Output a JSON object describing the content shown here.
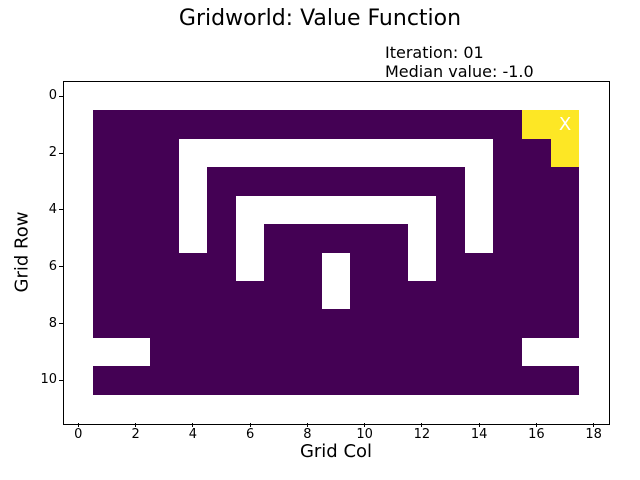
{
  "figure": {
    "title": "Gridworld: Value Function",
    "annotation_line1": "Iteration: 01",
    "annotation_line2": "Median value: -1.0",
    "xlabel": "Grid Col",
    "ylabel": "Grid Row"
  },
  "chart_data": {
    "type": "heatmap",
    "title": "Gridworld: Value Function",
    "xlabel": "Grid Col",
    "ylabel": "Grid Row",
    "iteration": "01",
    "median_value": "-1.0",
    "n_rows": 12,
    "n_cols": 19,
    "xlim": [
      -0.5,
      18.5
    ],
    "ylim": [
      11.5,
      -0.5
    ],
    "x_ticks": [
      0,
      2,
      4,
      6,
      8,
      10,
      12,
      14,
      16,
      18
    ],
    "y_ticks": [
      0,
      2,
      4,
      6,
      8,
      10
    ],
    "grid_on": false,
    "legend": "none",
    "colorbar": "none",
    "cell_values": {
      "V": -1.0,
      "G": 0.0,
      ".": null
    },
    "colors": {
      "V": "#440154",
      "G": "#fde725",
      ".": "#ffffff",
      "figure_background": "#ffffff",
      "marker_text": "#ffffff"
    },
    "grid_rows": [
      "...................",
      ".VVVVVVVVVVVVVVVGG.",
      ".VVV...........VVG.",
      ".VVV.VVVVVVVVV.VVV.",
      ".VVV.V.......V.VVV.",
      ".VVV.V.VVVVV.V.VVV.",
      ".VVVVV.VV.VV.VVVVV.",
      ".VVVVVVVV.VVVVVVVV.",
      ".VVVVVVVVVVVVVVVVV.",
      "...VVVVVVVVVVVVV...",
      ".VVVVVVVVVVVVVVVVV.",
      "..................."
    ],
    "marker": {
      "label": "X",
      "row": 1,
      "col": 17
    },
    "annotations": [
      "Iteration: 01",
      "Median value: -1.0"
    ]
  }
}
